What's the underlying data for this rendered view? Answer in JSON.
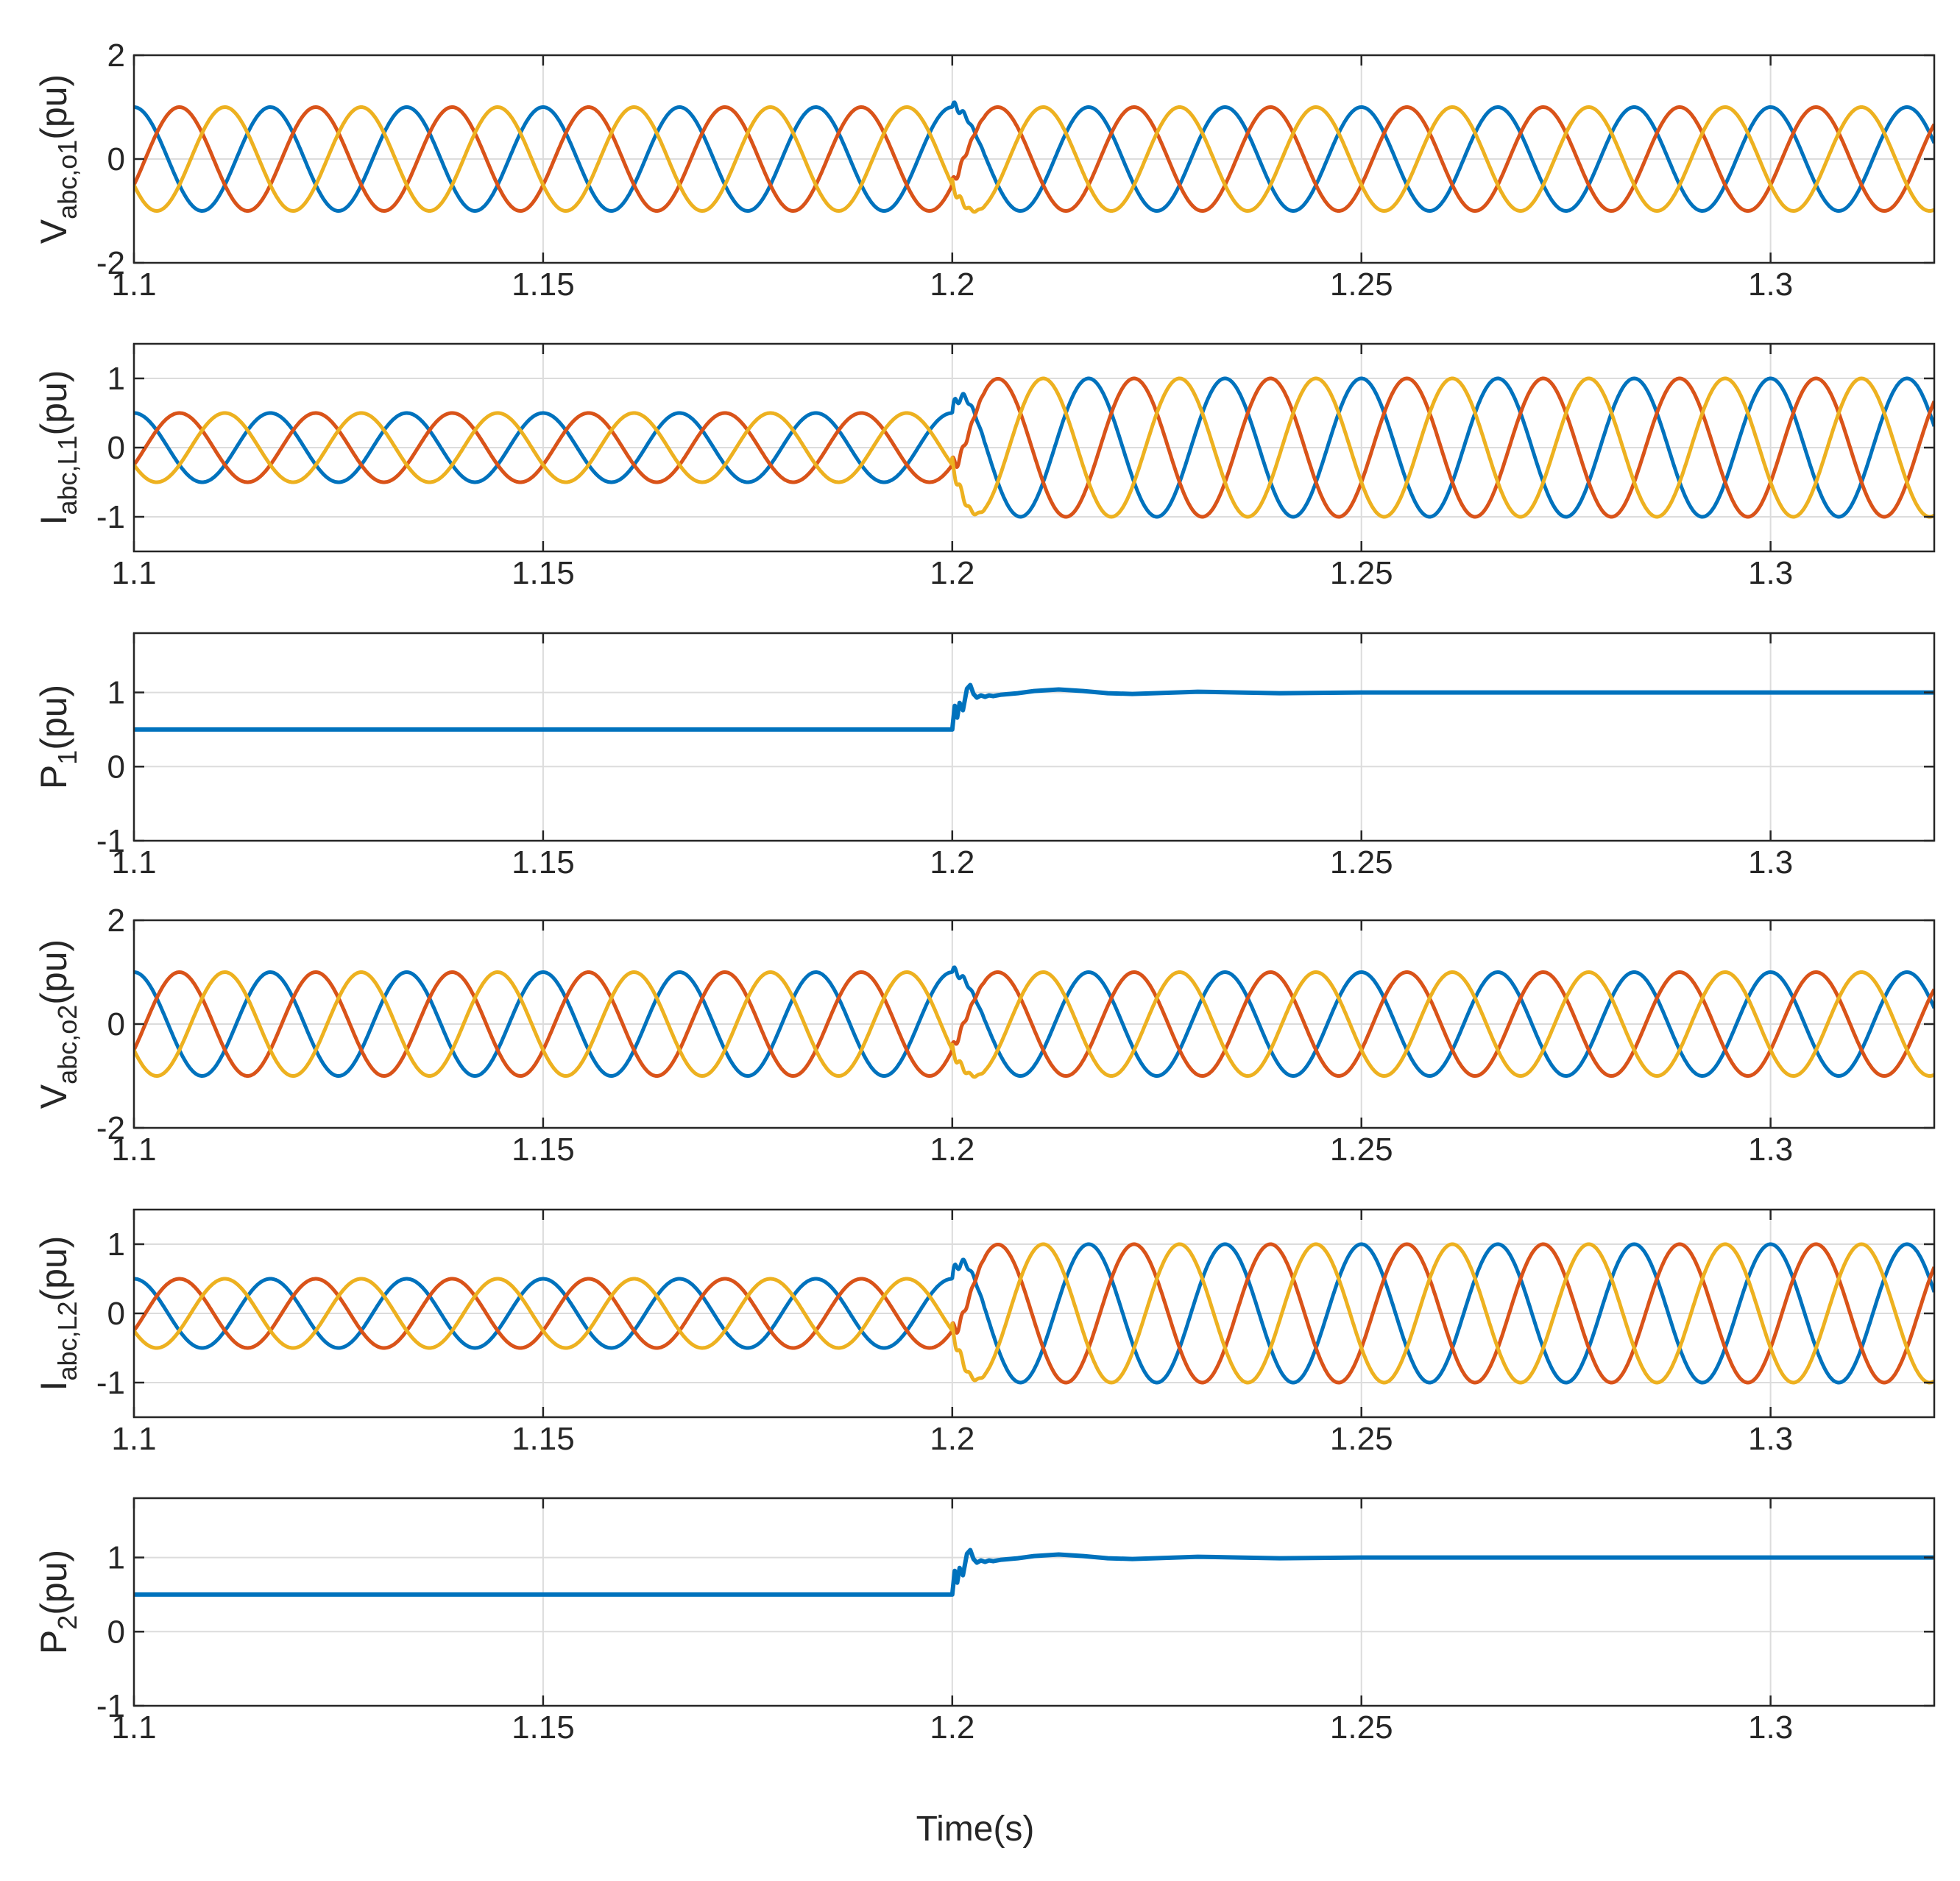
{
  "figure": {
    "xlabel": "Time(s)",
    "colors": {
      "phase_a": "#0072BD",
      "phase_b": "#D95319",
      "phase_c": "#EDB120",
      "power": "#0072BD"
    }
  },
  "chart_data": [
    {
      "type": "line",
      "ylabel_main": "V",
      "ylabel_sub": "abc,o1",
      "ylabel_unit": "(pu)",
      "xlim": [
        1.1,
        1.32
      ],
      "ylim": [
        -2,
        2
      ],
      "xticks": [
        "1.1",
        "1.15",
        "1.2",
        "1.25",
        "1.3"
      ],
      "yticks": [
        "-2",
        "0",
        "2"
      ],
      "grid": true,
      "waveform": "three-phase",
      "frequency_hz": 60,
      "event_time": 1.2,
      "amplitude_before": 1.0,
      "amplitude_after": 1.0,
      "series": [
        {
          "phase_deg": 90
        },
        {
          "phase_deg": -30
        },
        {
          "phase_deg": 210
        }
      ]
    },
    {
      "type": "line",
      "ylabel_main": "I",
      "ylabel_sub": "abc,L1",
      "ylabel_unit": "(pu)",
      "xlim": [
        1.1,
        1.32
      ],
      "ylim": [
        -1.5,
        1.5
      ],
      "xticks": [
        "1.1",
        "1.15",
        "1.2",
        "1.25",
        "1.3"
      ],
      "yticks": [
        "-1",
        "0",
        "1"
      ],
      "grid": true,
      "waveform": "three-phase",
      "frequency_hz": 60,
      "event_time": 1.2,
      "amplitude_before": 0.5,
      "amplitude_after": 1.0,
      "series": [
        {
          "phase_deg": 90
        },
        {
          "phase_deg": -30
        },
        {
          "phase_deg": 210
        }
      ]
    },
    {
      "type": "line",
      "ylabel_main": "P",
      "ylabel_sub": "1",
      "ylabel_unit": "(pu)",
      "xlim": [
        1.1,
        1.32
      ],
      "ylim": [
        -1,
        1.8
      ],
      "xticks": [
        "1.1",
        "1.15",
        "1.2",
        "1.25",
        "1.3"
      ],
      "yticks": [
        "-1",
        "0",
        "1"
      ],
      "grid": true,
      "waveform": "power",
      "series": [
        {
          "x": [
            1.1,
            1.2,
            1.2003,
            1.2006,
            1.2009,
            1.2013,
            1.2018,
            1.2022,
            1.2026,
            1.203,
            1.2035,
            1.204,
            1.2045,
            1.205,
            1.206,
            1.208,
            1.21,
            1.213,
            1.216,
            1.219,
            1.222,
            1.226,
            1.23,
            1.235,
            1.24,
            1.25,
            1.26,
            1.27,
            1.28,
            1.3,
            1.32
          ],
          "y": [
            0.5,
            0.5,
            0.82,
            0.66,
            0.86,
            0.76,
            1.05,
            1.1,
            0.98,
            0.93,
            0.96,
            0.94,
            0.96,
            0.95,
            0.97,
            0.99,
            1.02,
            1.04,
            1.02,
            0.99,
            0.98,
            0.995,
            1.01,
            1.0,
            0.99,
            1.0,
            1.0,
            1.0,
            1.0,
            1.0,
            1.0
          ]
        }
      ]
    },
    {
      "type": "line",
      "ylabel_main": "V",
      "ylabel_sub": "abc,o2",
      "ylabel_unit": "(pu)",
      "xlim": [
        1.1,
        1.32
      ],
      "ylim": [
        -2,
        2
      ],
      "xticks": [
        "1.1",
        "1.15",
        "1.2",
        "1.25",
        "1.3"
      ],
      "yticks": [
        "-2",
        "0",
        "2"
      ],
      "grid": true,
      "waveform": "three-phase",
      "frequency_hz": 60,
      "event_time": 1.2,
      "amplitude_before": 1.0,
      "amplitude_after": 1.0,
      "series": [
        {
          "phase_deg": 90
        },
        {
          "phase_deg": -30
        },
        {
          "phase_deg": 210
        }
      ]
    },
    {
      "type": "line",
      "ylabel_main": "I",
      "ylabel_sub": "abc,L2",
      "ylabel_unit": "(pu)",
      "xlim": [
        1.1,
        1.32
      ],
      "ylim": [
        -1.5,
        1.5
      ],
      "xticks": [
        "1.1",
        "1.15",
        "1.2",
        "1.25",
        "1.3"
      ],
      "yticks": [
        "-1",
        "0",
        "1"
      ],
      "grid": true,
      "waveform": "three-phase",
      "frequency_hz": 60,
      "event_time": 1.2,
      "amplitude_before": 0.5,
      "amplitude_after": 1.0,
      "series": [
        {
          "phase_deg": 90
        },
        {
          "phase_deg": -30
        },
        {
          "phase_deg": 210
        }
      ]
    },
    {
      "type": "line",
      "ylabel_main": "P",
      "ylabel_sub": "2",
      "ylabel_unit": "(pu)",
      "xlim": [
        1.1,
        1.32
      ],
      "ylim": [
        -1,
        1.8
      ],
      "xticks": [
        "1.1",
        "1.15",
        "1.2",
        "1.25",
        "1.3"
      ],
      "yticks": [
        "-1",
        "0",
        "1"
      ],
      "grid": true,
      "waveform": "power",
      "series": [
        {
          "x": [
            1.1,
            1.2,
            1.2003,
            1.2006,
            1.2009,
            1.2013,
            1.2018,
            1.2022,
            1.2026,
            1.203,
            1.2035,
            1.204,
            1.2045,
            1.205,
            1.206,
            1.208,
            1.21,
            1.213,
            1.216,
            1.219,
            1.222,
            1.226,
            1.23,
            1.235,
            1.24,
            1.25,
            1.26,
            1.27,
            1.28,
            1.3,
            1.32
          ],
          "y": [
            0.5,
            0.5,
            0.82,
            0.66,
            0.86,
            0.76,
            1.05,
            1.1,
            0.98,
            0.93,
            0.96,
            0.94,
            0.96,
            0.95,
            0.97,
            0.99,
            1.02,
            1.04,
            1.02,
            0.99,
            0.98,
            0.995,
            1.01,
            1.0,
            0.99,
            1.0,
            1.0,
            1.0,
            1.0,
            1.0,
            1.0
          ]
        }
      ]
    }
  ]
}
